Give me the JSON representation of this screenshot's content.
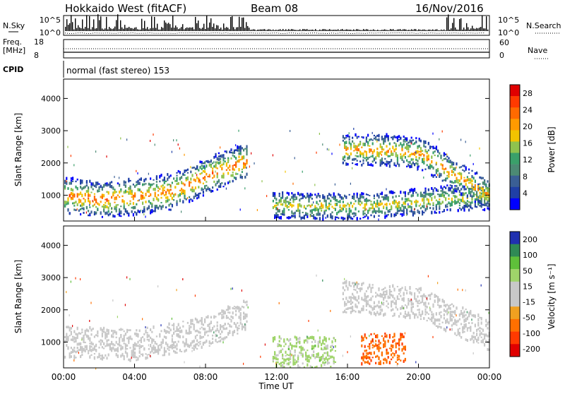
{
  "header": {
    "title": "Hokkaido West (fitACF)",
    "beam": "Beam 08",
    "date": "16/Nov/2016"
  },
  "noise_panel": {
    "left_label": "N.Sky",
    "right_label": "N.Search",
    "left_ticks": [
      "10^5",
      "10^0"
    ],
    "right_ticks": [
      "10^5",
      "10^0"
    ]
  },
  "freq_panel": {
    "left_label_line1": "Freq.",
    "left_label_line2": "[MHz]",
    "right_label": "Nave",
    "left_ticks": [
      "18",
      "8"
    ],
    "right_ticks": [
      "60",
      "0"
    ]
  },
  "cpid": {
    "label": "CPID",
    "text": "normal (fast stereo) 153"
  },
  "colors": {
    "power": [
      "#0000ff",
      "#1f3fa6",
      "#3a5f95",
      "#4c8a74",
      "#3aa06a",
      "#8fc24e",
      "#f2c400",
      "#ff9a00",
      "#ff6a00",
      "#ff3a00",
      "#e00000"
    ],
    "velocity": [
      "#2030b0",
      "#2f8a55",
      "#5fbf3a",
      "#9fd46a",
      "#c8c8c8",
      "#c8c8c8",
      "#f0a020",
      "#ff7000",
      "#ff3a00",
      "#e00000"
    ]
  },
  "chart_data": [
    {
      "type": "heatmap",
      "name": "power",
      "ylabel": "Slant Range [km]",
      "ylim": [
        200,
        4600
      ],
      "yticks": [
        "1000",
        "2000",
        "3000",
        "4000"
      ],
      "xlim_hours": [
        0,
        24
      ],
      "xticks": [
        "00:00",
        "04:00",
        "08:00",
        "12:00",
        "16:00",
        "20:00",
        "00:00"
      ],
      "colorbar": {
        "label": "Power [dB]",
        "ticks": [
          "4",
          "8",
          "12",
          "16",
          "20",
          "24",
          "28"
        ],
        "range": [
          0,
          30
        ]
      },
      "features": [
        {
          "t": [
            0,
            2,
            4,
            6,
            7,
            8,
            9,
            10
          ],
          "range_km": [
            1000,
            850,
            950,
            1100,
            1300,
            1600,
            1800,
            2000
          ],
          "width_km": 700,
          "power": 24
        },
        {
          "t": [
            12,
            14,
            16,
            18,
            20,
            22,
            24
          ],
          "range_km": [
            700,
            650,
            650,
            700,
            800,
            900,
            950
          ],
          "width_km": 500,
          "power": 18
        },
        {
          "t": [
            16,
            18,
            20,
            21,
            22,
            23,
            24
          ],
          "range_km": [
            2400,
            2400,
            2300,
            2000,
            1600,
            1300,
            1000
          ],
          "width_km": 600,
          "power": 22
        }
      ]
    },
    {
      "type": "heatmap",
      "name": "velocity",
      "ylabel": "Slant Range [km]",
      "ylim": [
        200,
        4600
      ],
      "yticks": [
        "1000",
        "2000",
        "3000",
        "4000"
      ],
      "xlim_hours": [
        0,
        24
      ],
      "xticks": [
        "00:00",
        "04:00",
        "08:00",
        "12:00",
        "16:00",
        "20:00",
        "00:00"
      ],
      "xlabel": "Time UT",
      "colorbar": {
        "label": "Velocity [m s⁻¹]",
        "ticks": [
          "200",
          "100",
          "50",
          "15",
          "-15",
          "-50",
          "-100",
          "-200"
        ],
        "range": [
          -200,
          200
        ]
      },
      "features": [
        {
          "t": [
            0,
            4,
            8,
            10
          ],
          "range_km": [
            1000,
            900,
            1300,
            1800
          ],
          "velocity": 0
        },
        {
          "t": [
            12,
            15
          ],
          "range_km": [
            700,
            700
          ],
          "velocity": 60
        },
        {
          "t": [
            17,
            19
          ],
          "range_km": [
            800,
            800
          ],
          "velocity": -120
        },
        {
          "t": [
            16,
            20,
            24
          ],
          "range_km": [
            2400,
            2200,
            1200
          ],
          "velocity": 0
        }
      ]
    }
  ]
}
